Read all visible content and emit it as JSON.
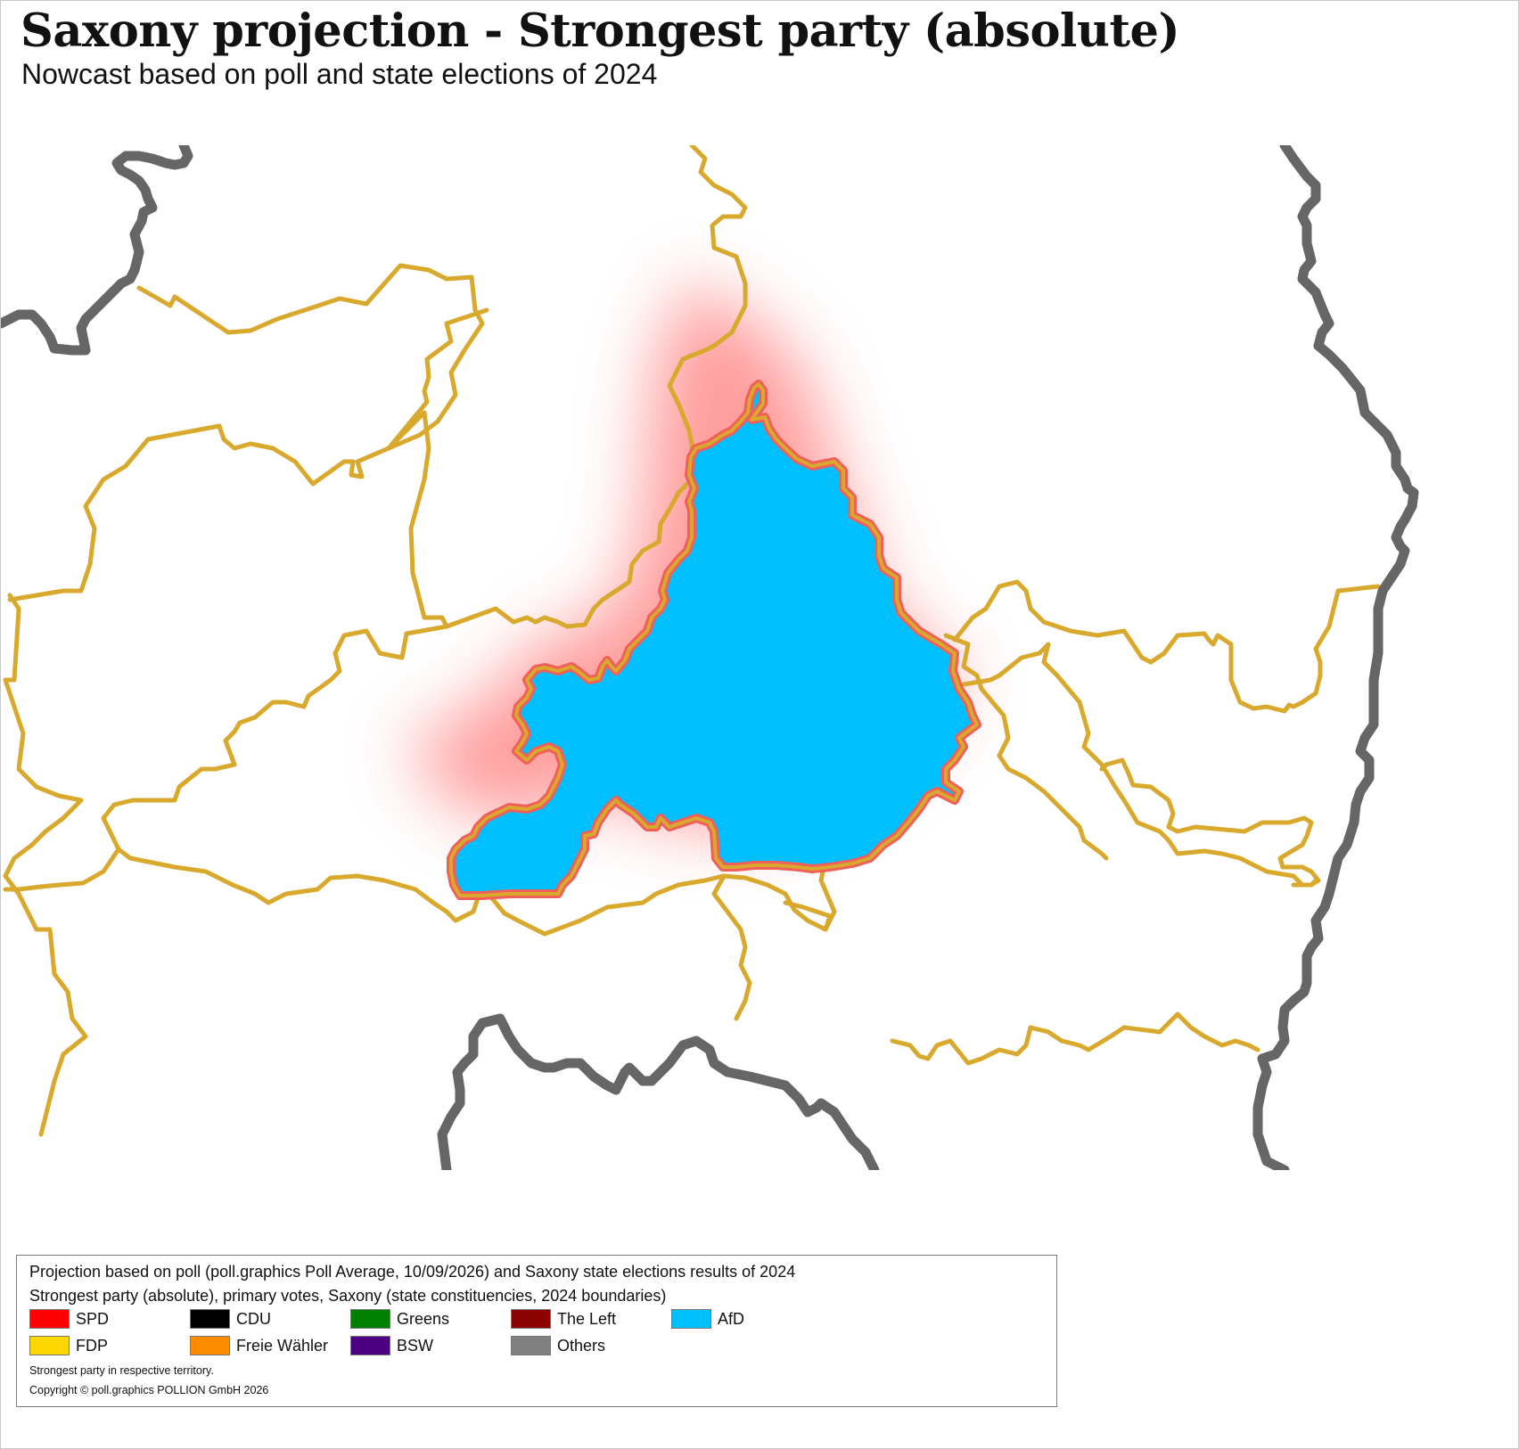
{
  "title": "Saxony projection - Strongest party (absolute)",
  "subtitle": "Nowcast based on poll and state elections of 2024",
  "map": {
    "colors": {
      "state_border": "#666666",
      "constituency_border": "#d9a92e",
      "highlight_glow": "#ff6b6b",
      "highlight_outline": "#f0605a",
      "afd_fill": "#00bfff"
    },
    "highlighted_party": "AfD"
  },
  "legend": {
    "line1": "Projection based on poll (poll.graphics Poll Average, 10/09/2026) and Saxony state elections results of 2024",
    "line2": "Strongest party (absolute), primary votes, Saxony (state constituencies, 2024 boundaries)",
    "items": [
      {
        "label": "SPD",
        "color": "#ff0000"
      },
      {
        "label": "CDU",
        "color": "#000000"
      },
      {
        "label": "Greens",
        "color": "#008000"
      },
      {
        "label": "The Left",
        "color": "#8b0000"
      },
      {
        "label": "AfD",
        "color": "#00bfff"
      },
      {
        "label": "FDP",
        "color": "#ffd700"
      },
      {
        "label": "Freie Wähler",
        "color": "#ff8c00"
      },
      {
        "label": "BSW",
        "color": "#4b0082"
      },
      {
        "label": "Others",
        "color": "#808080"
      }
    ],
    "note": "Strongest party in respective territory.",
    "copyright": "Copyright © poll.graphics POLLION GmbH 2026"
  }
}
